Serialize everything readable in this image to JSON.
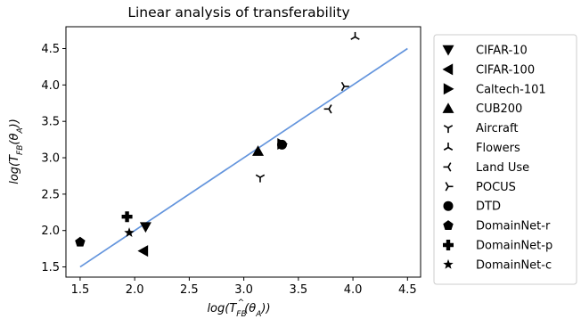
{
  "chart_data": {
    "type": "scatter",
    "title": "Linear analysis of transferability",
    "xlabel": "log(T_FB^(θ_A))",
    "ylabel": "log(T_FB(θ_A))",
    "xlim": [
      1.37,
      4.62
    ],
    "ylim": [
      1.36,
      4.8
    ],
    "xticks": [
      "1.5",
      "2.0",
      "2.5",
      "3.0",
      "3.5",
      "4.0",
      "4.5"
    ],
    "yticks": [
      "1.5",
      "2.0",
      "2.5",
      "3.0",
      "3.5",
      "4.0",
      "4.5"
    ],
    "grid": false,
    "legend_position": "right",
    "fit_line": {
      "x": [
        1.5,
        4.5
      ],
      "y": [
        1.5,
        4.5
      ],
      "color": "#6495dd"
    },
    "marker_color": "#000000",
    "series": [
      {
        "name": "CIFAR-10",
        "marker": "triangle-down",
        "x": 2.1,
        "y": 2.05
      },
      {
        "name": "CIFAR-100",
        "marker": "triangle-left",
        "x": 2.08,
        "y": 1.72
      },
      {
        "name": "Caltech-101",
        "marker": "triangle-right",
        "x": 3.35,
        "y": 3.19
      },
      {
        "name": "CUB200",
        "marker": "triangle-up",
        "x": 3.13,
        "y": 3.09
      },
      {
        "name": "Aircraft",
        "marker": "tri-down",
        "x": 3.15,
        "y": 2.73
      },
      {
        "name": "Flowers",
        "marker": "tri-up",
        "x": 4.02,
        "y": 4.66
      },
      {
        "name": "Land Use",
        "marker": "tri-left",
        "x": 3.78,
        "y": 3.67
      },
      {
        "name": "POCUS",
        "marker": "tri-right",
        "x": 3.92,
        "y": 3.98
      },
      {
        "name": "DTD",
        "marker": "circle",
        "x": 3.35,
        "y": 3.18
      },
      {
        "name": "DomainNet-r",
        "marker": "pentagon",
        "x": 1.5,
        "y": 1.84
      },
      {
        "name": "DomainNet-p",
        "marker": "plus",
        "x": 1.93,
        "y": 2.19
      },
      {
        "name": "DomainNet-c",
        "marker": "star",
        "x": 1.95,
        "y": 1.97
      }
    ]
  }
}
